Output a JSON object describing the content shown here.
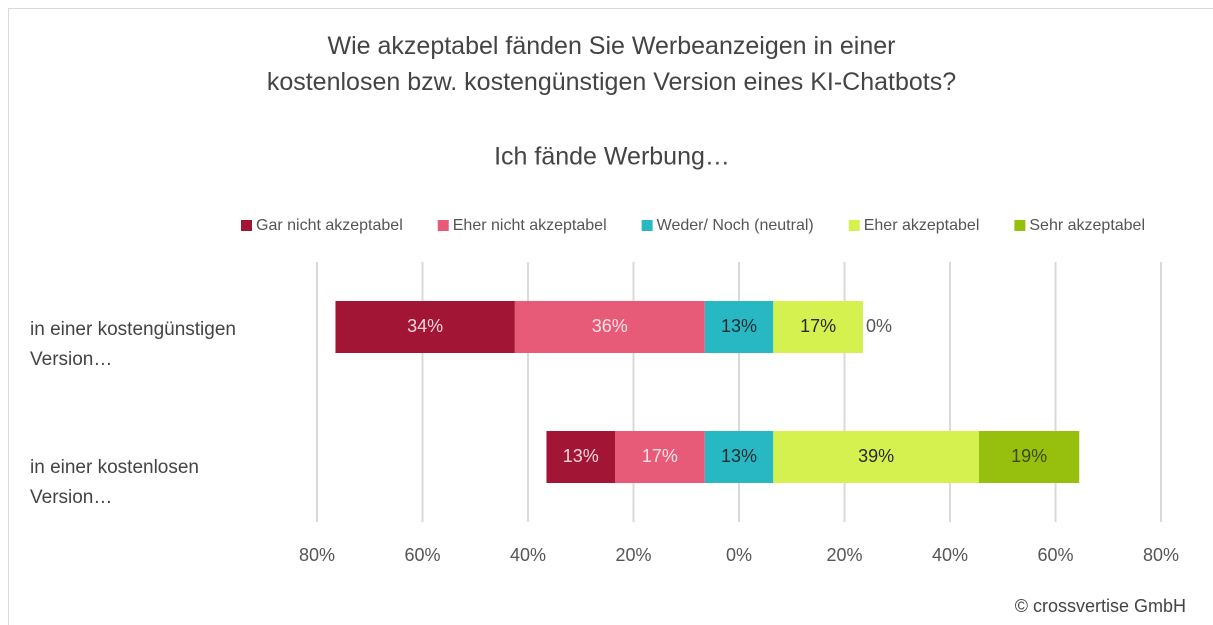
{
  "chart_data": {
    "type": "diverging_bar",
    "title": "Wie akzeptabel fänden Sie Werbeanzeigen in einer\nkostenlosen bzw. kostengünstigen Version eines KI-Chatbots?",
    "subtitle": "Ich fände Werbung…",
    "categories": [
      "in einer kostengünstigen Version…",
      "in einer kostenlosen Version…"
    ],
    "series": [
      {
        "name": "Gar nicht akzeptabel",
        "color": "#a31535",
        "label_color": "#f3d6dc",
        "values": [
          34,
          13
        ],
        "value_labels": [
          "34%",
          "13%"
        ]
      },
      {
        "name": "Eher nicht akzeptabel",
        "color": "#e75a78",
        "label_color": "#fbe3e8",
        "values": [
          36,
          17
        ],
        "value_labels": [
          "36%",
          "17%"
        ]
      },
      {
        "name": "Weder/ Noch (neutral)",
        "color": "#27b8c4",
        "label_color": "#1f2a2c",
        "values": [
          13,
          13
        ],
        "value_labels": [
          "13%",
          "13%"
        ]
      },
      {
        "name": "Eher akzeptabel",
        "color": "#d4f150",
        "label_color": "#2a2a2a",
        "values": [
          17,
          39
        ],
        "value_labels": [
          "17%",
          "39%"
        ]
      },
      {
        "name": "Sehr akzeptabel",
        "color": "#97bf0d",
        "label_color": "#3a4a10",
        "values": [
          0,
          19
        ],
        "value_labels": [
          "0%",
          "19%"
        ]
      }
    ],
    "xlim": [
      -80,
      80
    ],
    "xticks": [
      {
        "value": -80,
        "label": "80%"
      },
      {
        "value": -60,
        "label": "60%"
      },
      {
        "value": -40,
        "label": "40%"
      },
      {
        "value": -20,
        "label": "20%"
      },
      {
        "value": 0,
        "label": "0%"
      },
      {
        "value": 20,
        "label": "20%"
      },
      {
        "value": 40,
        "label": "40%"
      },
      {
        "value": 60,
        "label": "60%"
      },
      {
        "value": 80,
        "label": "80%"
      }
    ],
    "grid": true,
    "legend": "top",
    "source": "© crossvertise GmbH"
  }
}
